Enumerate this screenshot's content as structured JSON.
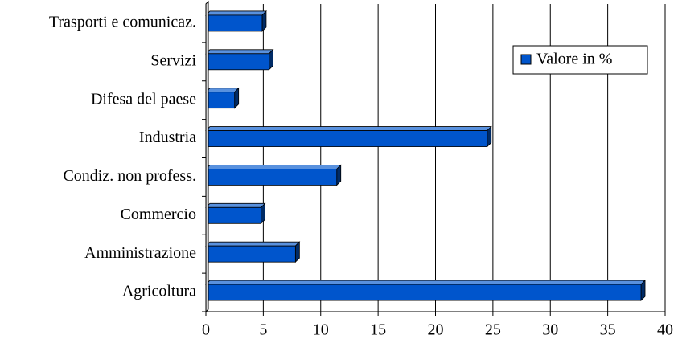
{
  "chart_data": {
    "type": "bar",
    "orientation": "horizontal",
    "categories": [
      "Trasporti e comunicaz.",
      "Servizi",
      "Difesa del paese",
      "Industria",
      "Condiz. non profess.",
      "Commercio",
      "Amministrazione",
      "Agricoltura"
    ],
    "series": [
      {
        "name": "Valore in %",
        "color": "#0055cc",
        "values": [
          4.9,
          5.5,
          2.5,
          24.5,
          11.4,
          4.8,
          7.8,
          37.9
        ]
      }
    ],
    "xlim": [
      0,
      40
    ],
    "xticks": [
      0,
      5,
      10,
      15,
      20,
      25,
      30,
      35,
      40
    ],
    "grid": true,
    "legend": "upper right"
  }
}
